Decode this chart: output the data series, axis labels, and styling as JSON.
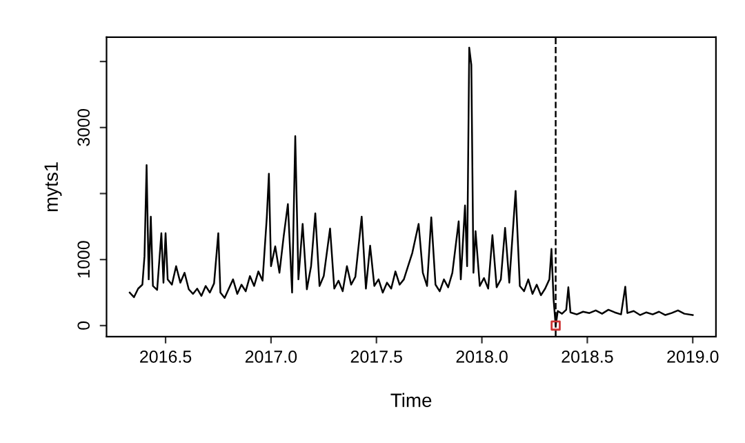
{
  "chart_data": {
    "type": "line",
    "xlabel": "Time",
    "ylabel": "myts1",
    "xlim": [
      2016.22,
      2019.11
    ],
    "ylim": [
      -168,
      4368
    ],
    "xticks": [
      2016.5,
      {
        "value": 2017,
        "label": "2017.0"
      },
      2017.5,
      {
        "value": 2018,
        "label": "2018.0"
      },
      2018.5,
      {
        "value": 2019,
        "label": "2019.0"
      }
    ],
    "yticks": [
      0,
      1000,
      {
        "value": 2000,
        "label": null
      },
      3000,
      {
        "value": 4000,
        "label": null
      }
    ],
    "grid": false,
    "legend": false,
    "ref_lines": [
      {
        "axis": "x",
        "value": 2018.35,
        "line_style": "dashed",
        "color": "#000000"
      }
    ],
    "series": [
      {
        "color": "#000000",
        "line_style": "solid",
        "x": [
          2016.33,
          2016.35,
          2016.37,
          2016.39,
          2016.4,
          2016.41,
          2016.42,
          2016.43,
          2016.44,
          2016.46,
          2016.48,
          2016.49,
          2016.5,
          2016.51,
          2016.53,
          2016.55,
          2016.57,
          2016.59,
          2016.61,
          2016.63,
          2016.65,
          2016.67,
          2016.69,
          2016.71,
          2016.73,
          2016.75,
          2016.76,
          2016.78,
          2016.8,
          2016.82,
          2016.84,
          2016.86,
          2016.88,
          2016.9,
          2016.92,
          2016.94,
          2016.96,
          2016.98,
          2016.99,
          2017.0,
          2017.02,
          2017.04,
          2017.06,
          2017.08,
          2017.1,
          2017.115,
          2017.13,
          2017.15,
          2017.17,
          2017.19,
          2017.21,
          2017.23,
          2017.25,
          2017.28,
          2017.3,
          2017.32,
          2017.34,
          2017.36,
          2017.38,
          2017.4,
          2017.43,
          2017.45,
          2017.47,
          2017.49,
          2017.51,
          2017.53,
          2017.55,
          2017.57,
          2017.59,
          2017.61,
          2017.63,
          2017.65,
          2017.67,
          2017.7,
          2017.72,
          2017.74,
          2017.76,
          2017.78,
          2017.8,
          2017.82,
          2017.84,
          2017.86,
          2017.89,
          2017.9,
          2017.92,
          2017.93,
          2017.94,
          2017.95,
          2017.96,
          2017.97,
          2017.99,
          2018.01,
          2018.03,
          2018.05,
          2018.07,
          2018.09,
          2018.11,
          2018.13,
          2018.16,
          2018.18,
          2018.2,
          2018.22,
          2018.24,
          2018.26,
          2018.28,
          2018.3,
          2018.32,
          2018.33,
          2018.34,
          2018.35,
          2018.36,
          2018.38,
          2018.4,
          2018.41,
          2018.42,
          2018.45,
          2018.48,
          2018.51,
          2018.54,
          2018.57,
          2018.6,
          2018.63,
          2018.66,
          2018.68,
          2018.69,
          2018.72,
          2018.75,
          2018.78,
          2018.81,
          2018.84,
          2018.87,
          2018.9,
          2018.93,
          2018.96,
          2019.0
        ],
        "values": [
          500,
          430,
          560,
          620,
          1050,
          2430,
          700,
          1650,
          600,
          540,
          1400,
          650,
          1400,
          700,
          620,
          900,
          650,
          800,
          550,
          480,
          560,
          450,
          600,
          500,
          640,
          1400,
          500,
          420,
          560,
          700,
          480,
          620,
          520,
          750,
          600,
          820,
          680,
          1640,
          2300,
          900,
          1200,
          800,
          1350,
          1840,
          500,
          2870,
          700,
          1540,
          550,
          900,
          1700,
          600,
          750,
          1470,
          560,
          680,
          520,
          900,
          620,
          740,
          1650,
          560,
          1210,
          600,
          700,
          500,
          650,
          560,
          820,
          620,
          700,
          900,
          1100,
          1540,
          800,
          600,
          1640,
          620,
          520,
          700,
          580,
          800,
          1580,
          700,
          1820,
          900,
          4210,
          3950,
          800,
          1430,
          600,
          720,
          560,
          1370,
          580,
          700,
          1480,
          650,
          2040,
          600,
          520,
          700,
          480,
          620,
          460,
          560,
          700,
          1160,
          400,
          0,
          220,
          180,
          240,
          580,
          200,
          170,
          210,
          190,
          230,
          180,
          240,
          200,
          170,
          590,
          190,
          220,
          160,
          200,
          170,
          210,
          160,
          190,
          230,
          180,
          160
        ]
      },
      {
        "type": "scatter",
        "color": "#cc3333",
        "marker": "square",
        "x": [
          2018.35
        ],
        "values": [
          0
        ]
      }
    ]
  }
}
